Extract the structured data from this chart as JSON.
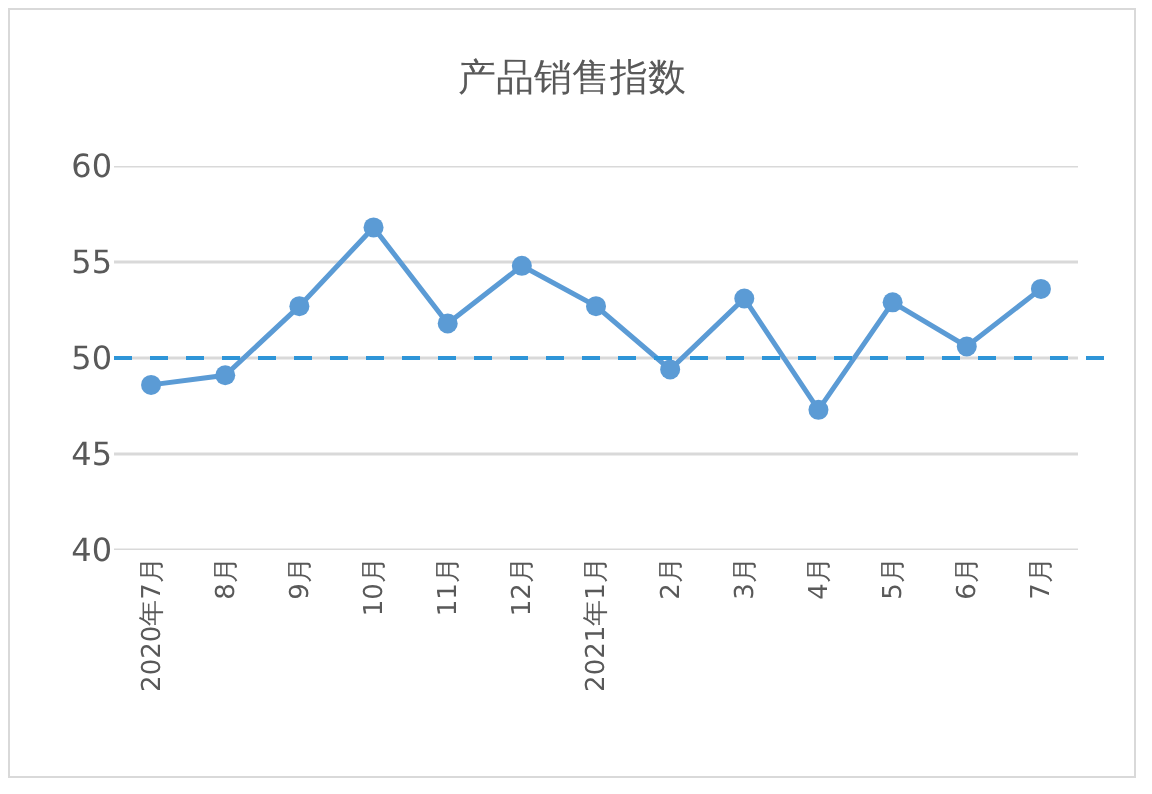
{
  "chart_data": {
    "type": "line",
    "title": "产品销售指数",
    "categories": [
      "2020年7月",
      "8月",
      "9月",
      "10月",
      "11月",
      "12月",
      "2021年1月",
      "2月",
      "3月",
      "4月",
      "5月",
      "6月",
      "7月"
    ],
    "series": [
      {
        "color": "#5b9bd5",
        "values": [
          48.6,
          49.1,
          52.7,
          56.8,
          51.8,
          54.8,
          52.7,
          49.4,
          53.1,
          47.3,
          52.9,
          50.6,
          53.6
        ]
      }
    ],
    "ylim": [
      40,
      60
    ],
    "yticks": [
      40,
      45,
      50,
      55,
      60
    ],
    "grid": "y",
    "marker": "circle",
    "line_style": "solid",
    "ref_lines": [
      {
        "axis": "y",
        "value": 50,
        "color": "#2e95d8",
        "line_style": "dashed"
      }
    ]
  }
}
